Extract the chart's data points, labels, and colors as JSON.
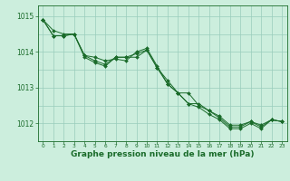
{
  "background_color": "#cceedd",
  "plot_bg_color": "#cceedd",
  "grid_color": "#99ccbb",
  "line_color": "#1a6b2a",
  "xlabel": "Graphe pression niveau de la mer (hPa)",
  "xlabel_fontsize": 6.5,
  "ytick_fontsize": 5.5,
  "xtick_fontsize": 4.2,
  "yticks": [
    1012,
    1013,
    1014,
    1015
  ],
  "ylim": [
    1011.5,
    1015.3
  ],
  "xlim": [
    -0.5,
    23.5
  ],
  "xticks": [
    0,
    1,
    2,
    3,
    4,
    5,
    6,
    7,
    8,
    9,
    10,
    11,
    12,
    13,
    14,
    15,
    16,
    17,
    18,
    19,
    20,
    21,
    22,
    23
  ],
  "series": [
    [
      1014.9,
      1014.6,
      1014.5,
      1014.5,
      1013.9,
      1013.85,
      1013.75,
      1013.8,
      1013.75,
      1014.0,
      1014.1,
      1013.6,
      1013.1,
      1012.85,
      1012.85,
      1012.5,
      1012.35,
      1012.2,
      1011.95,
      1011.95,
      1012.05,
      1011.95,
      1012.1,
      1012.05
    ],
    [
      1014.9,
      1014.45,
      1014.45,
      1014.5,
      1013.85,
      1013.7,
      1013.6,
      1013.85,
      1013.85,
      1013.85,
      1014.05,
      1013.55,
      1013.2,
      1012.85,
      1012.55,
      1012.55,
      1012.35,
      1012.15,
      1011.9,
      1011.9,
      1012.05,
      1011.9,
      1012.1,
      1012.05
    ],
    [
      1014.9,
      1014.45,
      1014.45,
      1014.5,
      1013.9,
      1013.75,
      1013.65,
      1013.85,
      1013.85,
      1013.95,
      1014.05,
      1013.55,
      1013.1,
      1012.85,
      1012.55,
      1012.45,
      1012.25,
      1012.1,
      1011.85,
      1011.85,
      1012.0,
      1011.85,
      1012.1,
      1012.05
    ]
  ]
}
